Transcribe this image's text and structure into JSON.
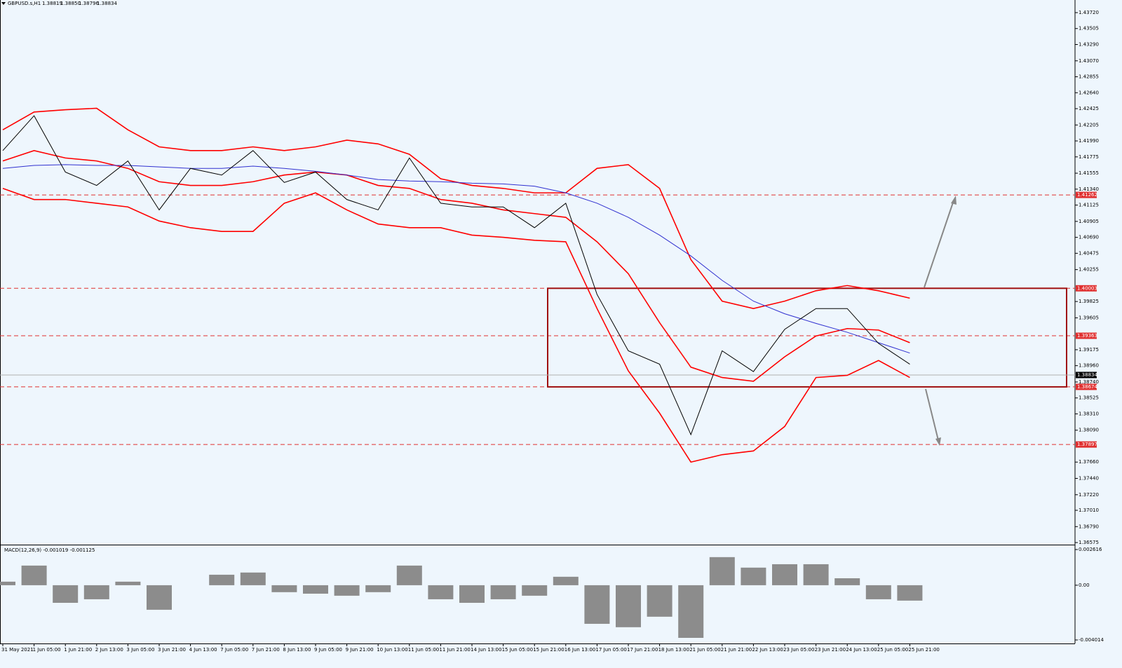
{
  "header": {
    "symbol": "GBPUSD.s,H1",
    "ohlc": [
      "1.38819",
      "1.38850",
      "1.38796",
      "1.38834"
    ]
  },
  "chart_data": [
    {
      "type": "line",
      "categories": [
        "31 May 2021",
        "1 Jun 05:00",
        "1 Jun 21:00",
        "2 Jun 13:00",
        "3 Jun 05:00",
        "3 Jun 21:00",
        "4 Jun 13:00",
        "7 Jun 05:00",
        "7 Jun 21:00",
        "8 Jun 13:00",
        "9 Jun 05:00",
        "9 Jun 21:00",
        "10 Jun 13:00",
        "11 Jun 05:00",
        "11 Jun 21:00",
        "14 Jun 13:00",
        "15 Jun 05:00",
        "15 Jun 21:00",
        "16 Jun 13:00",
        "17 Jun 05:00",
        "17 Jun 21:00",
        "18 Jun 13:00",
        "21 Jun 05:00",
        "21 Jun 21:00",
        "22 Jun 13:00",
        "23 Jun 05:00",
        "23 Jun 21:00",
        "24 Jun 13:00",
        "25 Jun 05:00",
        "25 Jun 21:00"
      ],
      "ylim": [
        1.36547,
        1.4389
      ],
      "yticks": [
        {
          "value": 1.4372,
          "label": "1.43720"
        },
        {
          "value": 1.43505,
          "label": "1.43505"
        },
        {
          "value": 1.4329,
          "label": "1.43290"
        },
        {
          "value": 1.4307,
          "label": "1.43070"
        },
        {
          "value": 1.42855,
          "label": "1.42855"
        },
        {
          "value": 1.4264,
          "label": "1.42640"
        },
        {
          "value": 1.42425,
          "label": "1.42425"
        },
        {
          "value": 1.42205,
          "label": "1.42205"
        },
        {
          "value": 1.4199,
          "label": "1.41990"
        },
        {
          "value": 1.41775,
          "label": "1.41775"
        },
        {
          "value": 1.41555,
          "label": "1.41555"
        },
        {
          "value": 1.4134,
          "label": "1.41340"
        },
        {
          "value": 1.41125,
          "label": "1.41125"
        },
        {
          "value": 1.40905,
          "label": "1.40905"
        },
        {
          "value": 1.4069,
          "label": "1.40690"
        },
        {
          "value": 1.40475,
          "label": "1.40475"
        },
        {
          "value": 1.40255,
          "label": "1.40255"
        },
        {
          "value": 1.39825,
          "label": "1.39825"
        },
        {
          "value": 1.39605,
          "label": "1.39605"
        },
        {
          "value": 1.39175,
          "label": "1.39175"
        },
        {
          "value": 1.3896,
          "label": "1.38960"
        },
        {
          "value": 1.3874,
          "label": "1.38740"
        },
        {
          "value": 1.38525,
          "label": "1.38525"
        },
        {
          "value": 1.3831,
          "label": "1.38310"
        },
        {
          "value": 1.3809,
          "label": "1.38090"
        },
        {
          "value": 1.3766,
          "label": "1.37660"
        },
        {
          "value": 1.3744,
          "label": "1.37440"
        },
        {
          "value": 1.3722,
          "label": "1.37220"
        },
        {
          "value": 1.3701,
          "label": "1.37010"
        },
        {
          "value": 1.3679,
          "label": "1.36790"
        },
        {
          "value": 1.36575,
          "label": "1.36575"
        }
      ],
      "series": [
        {
          "color": "#ff0000",
          "values": [
            1.4214,
            1.4238,
            1.4241,
            1.4243,
            1.4214,
            1.4191,
            1.4186,
            1.4186,
            1.4191,
            1.4186,
            1.4191,
            1.42,
            1.4195,
            1.4181,
            1.4148,
            1.4139,
            1.4135,
            1.4129,
            1.4129,
            1.4162,
            1.4167,
            1.4135,
            1.4039,
            1.3983,
            1.3973,
            1.3983,
            1.3997,
            1.4004,
            1.3997,
            1.3987
          ]
        },
        {
          "color": "#ff0000",
          "values": [
            1.4172,
            1.4186,
            1.4176,
            1.4172,
            1.4162,
            1.4144,
            1.4139,
            1.4139,
            1.4144,
            1.4153,
            1.4157,
            1.4153,
            1.4139,
            1.4135,
            1.412,
            1.4115,
            1.4106,
            1.4101,
            1.4096,
            1.4063,
            1.402,
            1.3954,
            1.3894,
            1.388,
            1.3875,
            1.3908,
            1.3936,
            1.3946,
            1.3944,
            1.3927
          ]
        },
        {
          "color": "#ff0000",
          "values": [
            1.4135,
            1.412,
            1.412,
            1.4115,
            1.411,
            1.4091,
            1.4082,
            1.4077,
            1.4077,
            1.4115,
            1.4129,
            1.4106,
            1.4087,
            1.4082,
            1.4082,
            1.4072,
            1.4069,
            1.4065,
            1.4063,
            1.3973,
            1.3889,
            1.3832,
            1.3766,
            1.3776,
            1.3781,
            1.3814,
            1.388,
            1.3883,
            1.3903,
            1.388
          ]
        },
        {
          "color": "#3030d0",
          "values": [
            1.4162,
            1.4166,
            1.4167,
            1.4166,
            1.4166,
            1.4164,
            1.4162,
            1.4162,
            1.4165,
            1.4162,
            1.4158,
            1.4153,
            1.4147,
            1.4145,
            1.4144,
            1.4142,
            1.4141,
            1.4138,
            1.4129,
            1.4115,
            1.4096,
            1.4072,
            1.4044,
            1.4011,
            1.3983,
            1.3966,
            1.3953,
            1.3941,
            1.3927,
            1.3913
          ]
        },
        {
          "color": "#000000",
          "values": [
            1.4186,
            1.4233,
            1.4157,
            1.4139,
            1.4172,
            1.4106,
            1.4162,
            1.4153,
            1.4186,
            1.4143,
            1.4157,
            1.412,
            1.4106,
            1.4176,
            1.4115,
            1.411,
            1.411,
            1.4082,
            1.4115,
            1.3992,
            1.3916,
            1.3898,
            1.3803,
            1.3916,
            1.3888,
            1.3945,
            1.3973,
            1.3973,
            1.3926,
            1.3898
          ]
        }
      ],
      "levels": [
        1.41262,
        1.40003,
        1.39363,
        1.38674,
        1.37897
      ],
      "level_color": "#e03030",
      "current_price": 1.38834
    },
    {
      "type": "bar",
      "title": "MACD(12,26,9) -0.001019 -0.001125",
      "values": [
        0.00026,
        0.00144,
        -0.00129,
        -0.00103,
        0.00026,
        -0.0018,
        0,
        0.00077,
        0.00093,
        -0.00051,
        -0.00062,
        -0.00077,
        -0.00051,
        0.00144,
        -0.00103,
        -0.00129,
        -0.00103,
        -0.00077,
        0.00062,
        -0.00283,
        -0.00308,
        -0.00231,
        -0.00386,
        0.00206,
        0.00129,
        0.00154,
        0.00154,
        0.00051,
        -0.00103,
        -0.00113
      ],
      "color": "#8c8c8c",
      "ylim": [
        -0.00422,
        0.002873
      ],
      "yticks": [
        0.002616,
        {
          "value": 0,
          "label": "0.00"
        },
        -0.004014
      ]
    }
  ]
}
